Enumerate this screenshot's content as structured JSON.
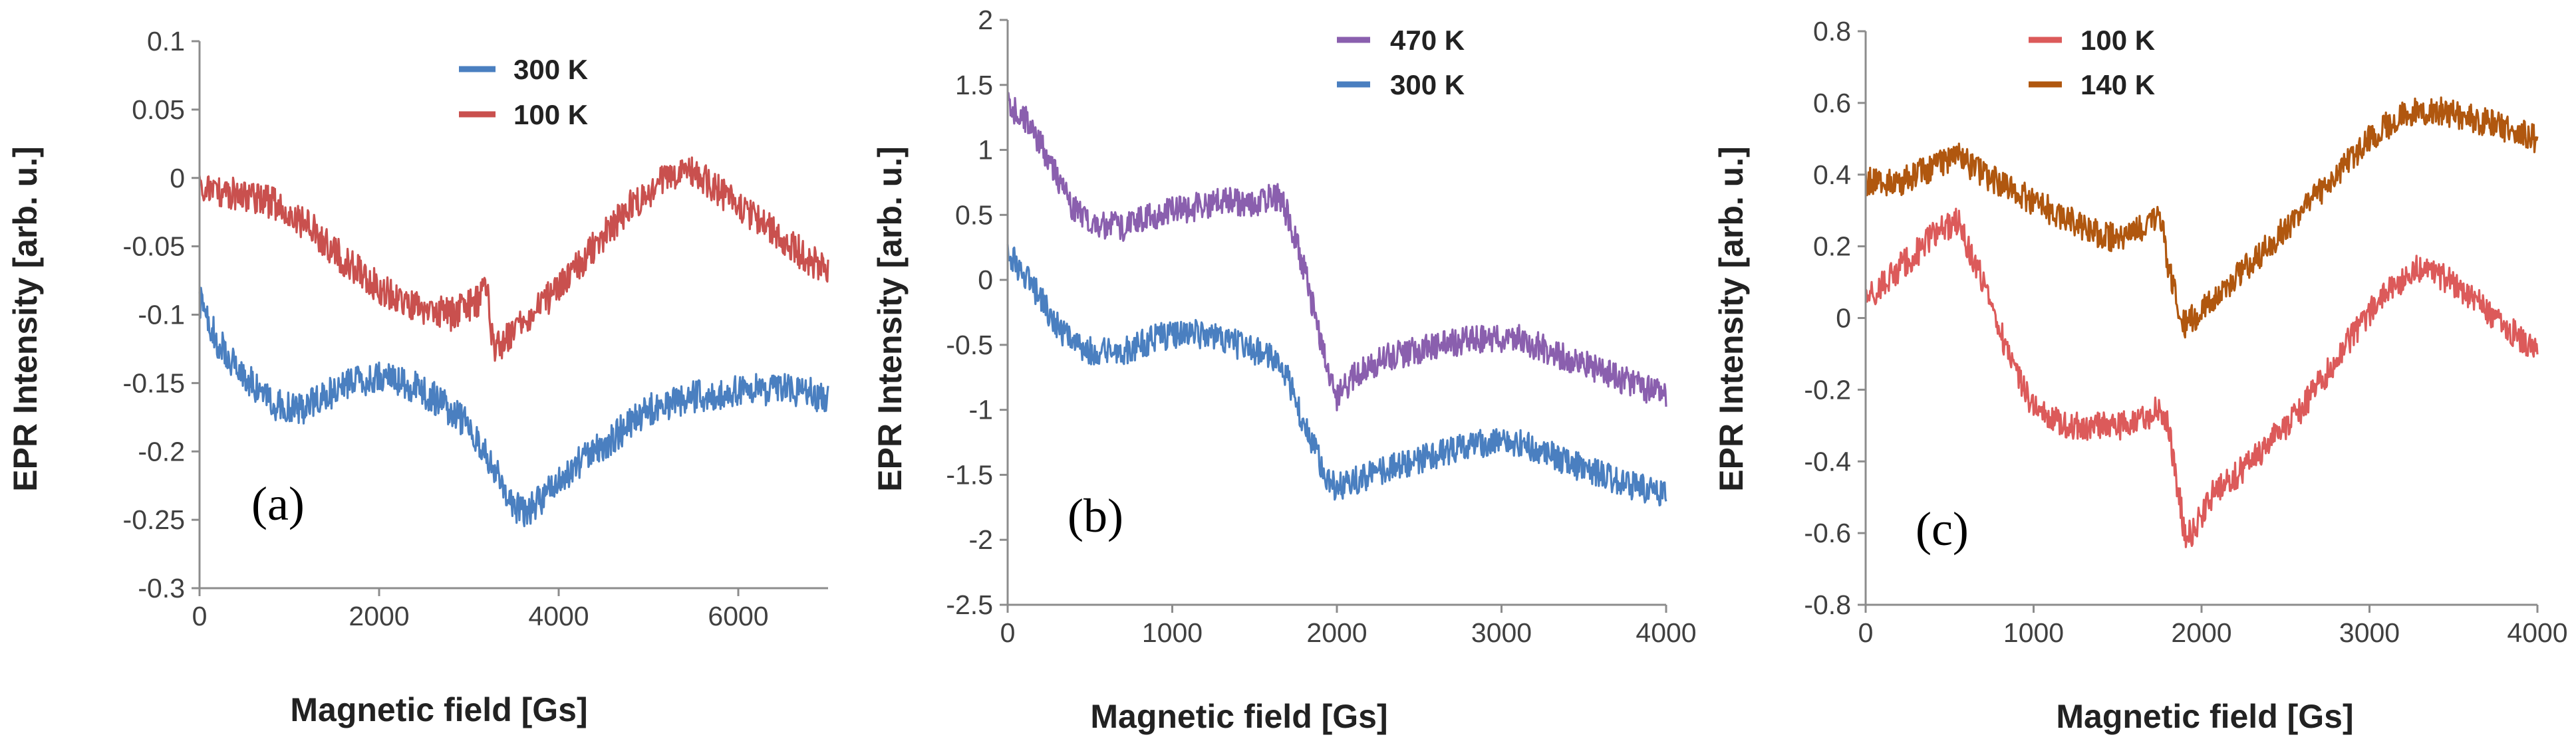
{
  "colors": {
    "blue": "#4a7fc0",
    "red": "#c9504e",
    "purple": "#8a5fae",
    "brown": "#b0570f",
    "red_c": "#dc5a5a"
  },
  "chart_data": [
    {
      "type": "line",
      "panel": "(a)",
      "xlabel": "Magnetic field [Gs]",
      "ylabel": "EPR Intensity [arb. u.]",
      "xlim": [
        0,
        7000
      ],
      "ylim": [
        -0.3,
        0.1
      ],
      "xticks": [
        0,
        2000,
        4000,
        6000
      ],
      "xtick_labels": [
        "0",
        "2000",
        "4000",
        "6000"
      ],
      "yticks": [
        0.1,
        0.05,
        0,
        -0.05,
        -0.1,
        -0.15,
        -0.2,
        -0.25,
        -0.3
      ],
      "ytick_labels": [
        "0.1",
        "0.05",
        "0",
        "-0.05",
        "-0.1",
        "-0.15",
        "-0.2",
        "-0.25",
        "-0.3"
      ],
      "legend_position": "top-center",
      "series": [
        {
          "name": "300 K",
          "color": "blue",
          "noise": 0.012,
          "x": [
            0,
            200,
            500,
            800,
            1100,
            1400,
            1700,
            2000,
            2300,
            2600,
            2900,
            3100,
            3300,
            3500,
            3650,
            3800,
            4100,
            4500,
            5000,
            5500,
            6000,
            6500,
            7000
          ],
          "y": [
            -0.09,
            -0.12,
            -0.145,
            -0.165,
            -0.17,
            -0.16,
            -0.15,
            -0.145,
            -0.15,
            -0.16,
            -0.175,
            -0.19,
            -0.215,
            -0.24,
            -0.245,
            -0.235,
            -0.215,
            -0.195,
            -0.17,
            -0.16,
            -0.155,
            -0.155,
            -0.16
          ]
        },
        {
          "name": "100 K",
          "color": "red",
          "noise": 0.012,
          "x": [
            0,
            300,
            700,
            1000,
            1300,
            1600,
            2000,
            2400,
            2800,
            3100,
            3200,
            3250,
            3300,
            3400,
            3700,
            4000,
            4400,
            4800,
            5200,
            5500,
            5800,
            6200,
            6600,
            7000
          ],
          "y": [
            -0.005,
            -0.01,
            -0.015,
            -0.025,
            -0.04,
            -0.06,
            -0.08,
            -0.095,
            -0.1,
            -0.09,
            -0.08,
            -0.11,
            -0.125,
            -0.12,
            -0.1,
            -0.08,
            -0.05,
            -0.02,
            0.0,
            0.005,
            -0.01,
            -0.03,
            -0.05,
            -0.07
          ]
        }
      ]
    },
    {
      "type": "line",
      "panel": "(b)",
      "xlabel": "Magnetic field [Gs]",
      "ylabel": "EPR Intensity [arb. u.]",
      "xlim": [
        0,
        4000
      ],
      "ylim": [
        -2.5,
        2
      ],
      "xticks": [
        0,
        1000,
        2000,
        3000,
        4000
      ],
      "xtick_labels": [
        "0",
        "1000",
        "2000",
        "3000",
        "4000"
      ],
      "yticks": [
        2,
        1.5,
        1,
        0.5,
        0,
        -0.5,
        -1,
        -1.5,
        -2,
        -2.5
      ],
      "ytick_labels": [
        "2",
        "1.5",
        "1",
        "0.5",
        "0",
        "-0.5",
        "-1",
        "-1.5",
        "-2",
        "-2.5"
      ],
      "legend_position": "top-center",
      "series": [
        {
          "name": "470 K",
          "color": "purple",
          "noise": 0.11,
          "x": [
            0,
            100,
            200,
            300,
            400,
            500,
            700,
            900,
            1100,
            1300,
            1500,
            1650,
            1700,
            1800,
            1900,
            1950,
            2000,
            2100,
            2300,
            2600,
            2900,
            3100,
            3400,
            3700,
            4000
          ],
          "y": [
            1.35,
            1.25,
            1.05,
            0.8,
            0.55,
            0.45,
            0.4,
            0.5,
            0.55,
            0.6,
            0.6,
            0.65,
            0.5,
            0.1,
            -0.45,
            -0.75,
            -0.9,
            -0.75,
            -0.6,
            -0.5,
            -0.45,
            -0.45,
            -0.6,
            -0.75,
            -0.9
          ]
        },
        {
          "name": "300 K",
          "color": "blue",
          "noise": 0.11,
          "x": [
            0,
            100,
            200,
            300,
            400,
            500,
            700,
            900,
            1100,
            1300,
            1500,
            1650,
            1700,
            1800,
            1900,
            1950,
            2000,
            2100,
            2300,
            2600,
            2900,
            3100,
            3400,
            3700,
            4000
          ],
          "y": [
            0.2,
            0.05,
            -0.15,
            -0.35,
            -0.5,
            -0.55,
            -0.55,
            -0.45,
            -0.4,
            -0.45,
            -0.55,
            -0.6,
            -0.75,
            -1.1,
            -1.4,
            -1.55,
            -1.6,
            -1.55,
            -1.45,
            -1.35,
            -1.25,
            -1.25,
            -1.4,
            -1.55,
            -1.65
          ]
        }
      ]
    },
    {
      "type": "line",
      "panel": "(c)",
      "xlabel": "Magnetic field [Gs]",
      "ylabel": "EPR Intensity [arb. u.]",
      "xlim": [
        0,
        4000
      ],
      "ylim": [
        -0.8,
        0.8
      ],
      "xticks": [
        0,
        1000,
        2000,
        3000,
        4000
      ],
      "xtick_labels": [
        "0",
        "1000",
        "2000",
        "3000",
        "4000"
      ],
      "yticks": [
        0.8,
        0.6,
        0.4,
        0.2,
        0,
        -0.2,
        -0.4,
        -0.6,
        -0.8
      ],
      "ytick_labels": [
        "0.8",
        "0.6",
        "0.4",
        "0.2",
        "0",
        "-0.2",
        "-0.4",
        "-0.6",
        "-0.8"
      ],
      "legend_position": "top-left",
      "series": [
        {
          "name": "100 K",
          "color": "red_c",
          "noise": 0.04,
          "x": [
            0,
            150,
            300,
            450,
            550,
            700,
            850,
            1000,
            1200,
            1400,
            1600,
            1750,
            1800,
            1850,
            1900,
            1950,
            2050,
            2300,
            2600,
            2900,
            3100,
            3300,
            3500,
            3700,
            3900,
            4000
          ],
          "y": [
            0.05,
            0.12,
            0.18,
            0.25,
            0.27,
            0.1,
            -0.1,
            -0.25,
            -0.3,
            -0.3,
            -0.3,
            -0.25,
            -0.3,
            -0.45,
            -0.6,
            -0.6,
            -0.5,
            -0.4,
            -0.25,
            -0.05,
            0.08,
            0.14,
            0.1,
            0.02,
            -0.06,
            -0.1
          ]
        },
        {
          "name": "140 K",
          "color": "brown",
          "noise": 0.04,
          "x": [
            0,
            200,
            400,
            550,
            700,
            900,
            1100,
            1300,
            1500,
            1700,
            1750,
            1800,
            1850,
            1900,
            1950,
            2100,
            2400,
            2700,
            3000,
            3200,
            3400,
            3600,
            3800,
            4000
          ],
          "y": [
            0.38,
            0.38,
            0.42,
            0.45,
            0.4,
            0.35,
            0.3,
            0.25,
            0.22,
            0.27,
            0.3,
            0.15,
            0.05,
            -0.02,
            0.0,
            0.07,
            0.2,
            0.35,
            0.5,
            0.57,
            0.58,
            0.56,
            0.53,
            0.5
          ]
        }
      ]
    }
  ]
}
